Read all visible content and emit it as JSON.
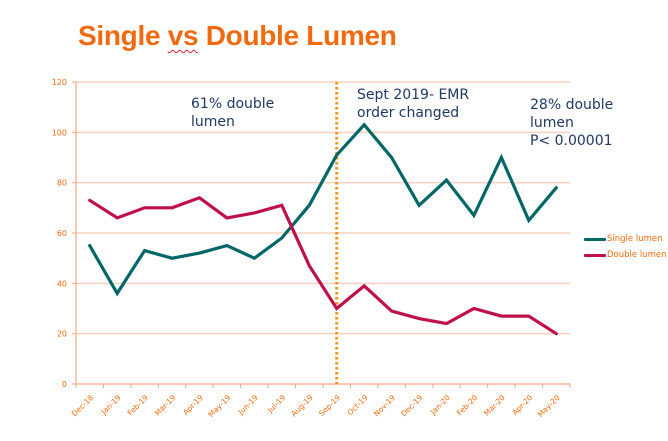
{
  "slide": {
    "title_part1": "Single ",
    "title_part2": "vs",
    "title_part3": " Double Lumen"
  },
  "annotations": {
    "before": [
      "61% double",
      "lumen"
    ],
    "change": [
      "Sept 2019- EMR",
      "order changed"
    ],
    "after": [
      "28% double",
      "lumen",
      "P< 0.00001"
    ]
  },
  "colors": {
    "title": "#f26a0f",
    "axis": "#f4a582",
    "grid": "#f9d0c0",
    "tick_label": "#f26a0f",
    "single": "#006666",
    "double": "#c0104a",
    "marker_line": "#f7941d",
    "annotation": "#1f3864"
  },
  "chart_data": {
    "type": "line",
    "title": "Single vs Double Lumen",
    "xlabel": "",
    "ylabel": "",
    "ylim": [
      0,
      120
    ],
    "yticks": [
      0,
      20,
      40,
      60,
      80,
      100,
      120
    ],
    "grid": true,
    "legend_position": "right",
    "categories": [
      "Dec-18",
      "Jan-19",
      "Feb-19",
      "Mar-19",
      "Apr-19",
      "May-19",
      "Jun-19",
      "Jul-19",
      "Aug-19",
      "Sep-19",
      "Oct-19",
      "Nov-19",
      "Dec-19",
      "Jan-20",
      "Feb-20",
      "Mar-20",
      "Apr-20",
      "May-20"
    ],
    "series": [
      {
        "name": "Single lumen",
        "color": "#006666",
        "values": [
          55,
          36,
          53,
          50,
          52,
          55,
          50,
          58,
          71,
          91,
          103,
          90,
          71,
          81,
          67,
          90,
          65,
          78
        ]
      },
      {
        "name": "Double lumen",
        "color": "#c0104a",
        "values": [
          73,
          66,
          70,
          70,
          74,
          66,
          68,
          71,
          47,
          30,
          39,
          29,
          26,
          24,
          30,
          27,
          27,
          20
        ]
      }
    ],
    "vertical_marker": {
      "category": "Sep-19",
      "label": "Sept 2019- EMR order changed",
      "style": "dotted"
    }
  }
}
